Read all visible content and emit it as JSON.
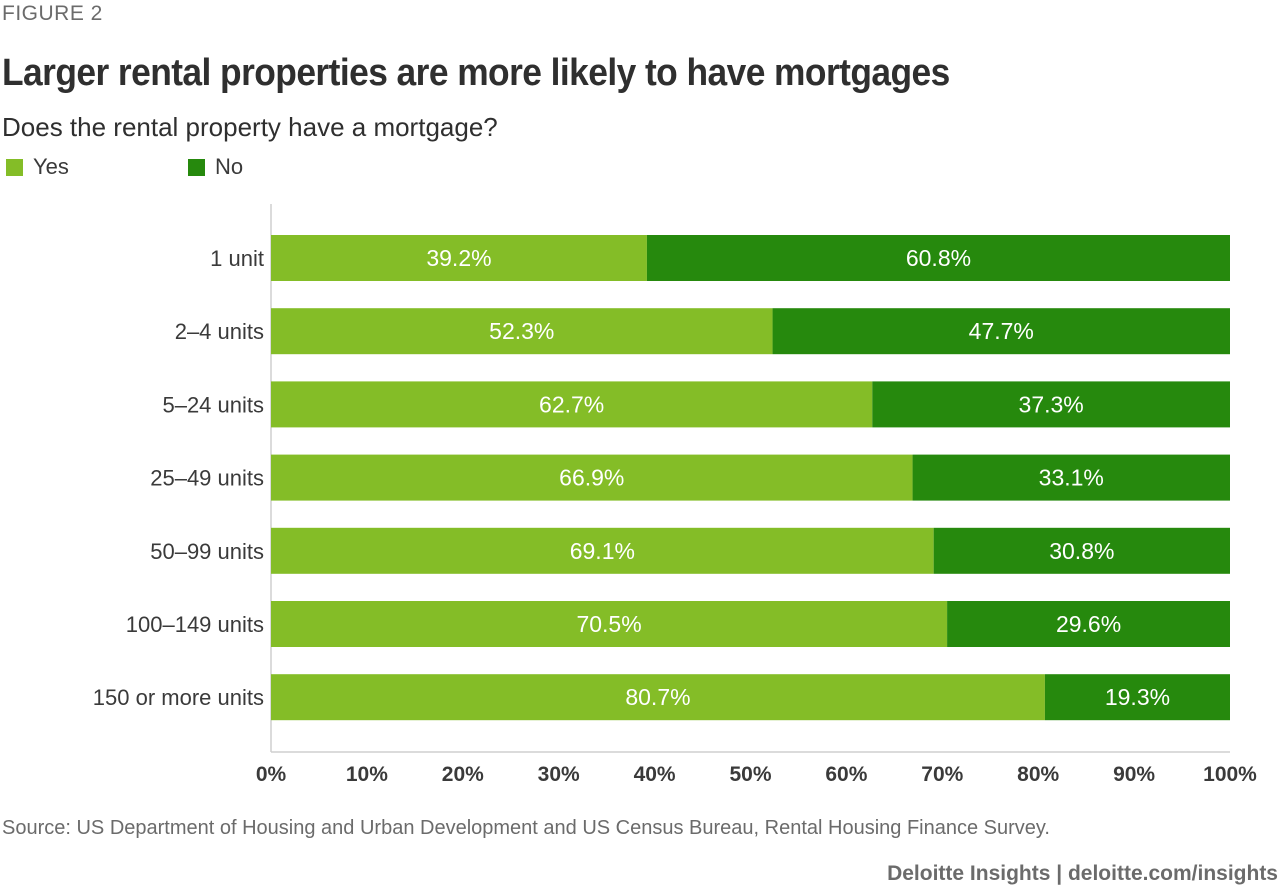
{
  "figure_label": "FIGURE 2",
  "source": "Source: US Department of Housing and Urban Development and US Census Bureau, Rental Housing Finance Survey.",
  "credit": "Deloitte Insights | deloitte.com/insights",
  "colors": {
    "yes": "#84bd27",
    "no": "#26890d",
    "axis": "#cfcfcf",
    "label": "#3a3a3a",
    "bar_text": "#ffffff"
  },
  "chart_data": {
    "type": "bar",
    "orientation": "horizontal",
    "stacked": true,
    "title": "Larger rental properties are more likely to have mortgages",
    "subtitle": "Does the rental property have a mortgage?",
    "categories": [
      "1 unit",
      "2–4 units",
      "5–24 units",
      "25–49 units",
      "50–99 units",
      "100–149 units",
      "150 or more units"
    ],
    "series": [
      {
        "name": "Yes",
        "values": [
          39.2,
          52.3,
          62.7,
          66.9,
          69.1,
          70.5,
          80.7
        ]
      },
      {
        "name": "No",
        "values": [
          60.8,
          47.7,
          37.3,
          33.1,
          30.8,
          29.6,
          19.3
        ]
      }
    ],
    "data_labels": [
      [
        "39.2%",
        "52.3%",
        "62.7%",
        "66.9%",
        "69.1%",
        "70.5%",
        "80.7%"
      ],
      [
        "60.8%",
        "47.7%",
        "37.3%",
        "33.1%",
        "30.8%",
        "29.6%",
        "19.3%"
      ]
    ],
    "x_ticks": [
      "0%",
      "10%",
      "20%",
      "30%",
      "40%",
      "50%",
      "60%",
      "70%",
      "80%",
      "90%",
      "100%"
    ],
    "xlim": [
      0,
      100
    ],
    "grid": false,
    "legend_position": "top-left"
  }
}
